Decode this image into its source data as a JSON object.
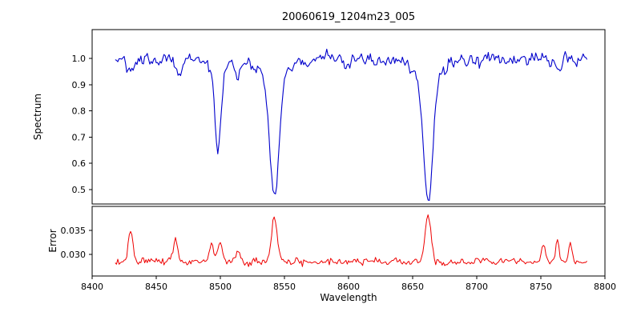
{
  "chart_data": [
    {
      "type": "line",
      "title": "20060619_1204m23_005",
      "ylabel": "Spectrum",
      "color": "#0000cc",
      "xlim": [
        8400,
        8800
      ],
      "ylim": [
        0.445,
        1.11
      ],
      "yticks": [
        {
          "v": 0.5,
          "label": "0.5"
        },
        {
          "v": 0.6,
          "label": "0.6"
        },
        {
          "v": 0.7,
          "label": "0.7"
        },
        {
          "v": 0.8,
          "label": "0.8"
        },
        {
          "v": 0.9,
          "label": "0.9"
        },
        {
          "v": 1.0,
          "label": "1.0"
        }
      ],
      "x_start": 8418,
      "x_end": 8786,
      "x_step": 1.0,
      "baseline": 1.0,
      "noise_sigma": 0.012,
      "noise_corr": 0.45,
      "seed": 20060619,
      "features": [
        {
          "center": 8498.0,
          "amp": -0.3,
          "sigma": 2.2
        },
        {
          "center": 8498.0,
          "amp": -0.06,
          "sigma": 6.0
        },
        {
          "center": 8542.1,
          "amp": -0.45,
          "sigma": 3.5
        },
        {
          "center": 8542.1,
          "amp": -0.08,
          "sigma": 10.0
        },
        {
          "center": 8662.1,
          "amp": -0.45,
          "sigma": 3.5
        },
        {
          "center": 8662.1,
          "amp": -0.08,
          "sigma": 10.0
        },
        {
          "center": 8430.0,
          "amp": -0.05,
          "sigma": 2.0
        },
        {
          "center": 8468.0,
          "amp": -0.06,
          "sigma": 2.0
        },
        {
          "center": 8514.0,
          "amp": -0.09,
          "sigma": 2.0
        },
        {
          "center": 8598.0,
          "amp": -0.04,
          "sigma": 2.0
        },
        {
          "center": 8763.0,
          "amp": -0.05,
          "sigma": 2.0
        }
      ]
    },
    {
      "type": "line",
      "ylabel": "Error",
      "xlabel": "Wavelength",
      "color": "#ee0000",
      "xlim": [
        8400,
        8800
      ],
      "ylim": [
        0.0255,
        0.04
      ],
      "yticks": [
        {
          "v": 0.03,
          "label": "0.030"
        },
        {
          "v": 0.035,
          "label": "0.035"
        }
      ],
      "xticks": [
        {
          "v": 8400,
          "label": "8400"
        },
        {
          "v": 8450,
          "label": "8450"
        },
        {
          "v": 8500,
          "label": "8500"
        },
        {
          "v": 8550,
          "label": "8550"
        },
        {
          "v": 8600,
          "label": "8600"
        },
        {
          "v": 8650,
          "label": "8650"
        },
        {
          "v": 8700,
          "label": "8700"
        },
        {
          "v": 8750,
          "label": "8750"
        },
        {
          "v": 8800,
          "label": "8800"
        }
      ],
      "x_start": 8418,
      "x_end": 8786,
      "x_step": 1.0,
      "baseline": 0.0285,
      "noise_sigma": 0.00035,
      "noise_corr": 0.3,
      "seed": 1204,
      "features": [
        {
          "center": 8430.0,
          "amp": 0.006,
          "sigma": 1.6
        },
        {
          "center": 8465.0,
          "amp": 0.0048,
          "sigma": 1.6
        },
        {
          "center": 8493.0,
          "amp": 0.0038,
          "sigma": 1.8
        },
        {
          "center": 8500.0,
          "amp": 0.0042,
          "sigma": 1.8
        },
        {
          "center": 8513.0,
          "amp": 0.002,
          "sigma": 1.8
        },
        {
          "center": 8542.0,
          "amp": 0.0095,
          "sigma": 2.2
        },
        {
          "center": 8662.0,
          "amp": 0.0098,
          "sigma": 2.2
        },
        {
          "center": 8752.0,
          "amp": 0.0038,
          "sigma": 1.5
        },
        {
          "center": 8763.0,
          "amp": 0.0045,
          "sigma": 1.5
        },
        {
          "center": 8773.0,
          "amp": 0.0032,
          "sigma": 1.5
        }
      ]
    }
  ]
}
